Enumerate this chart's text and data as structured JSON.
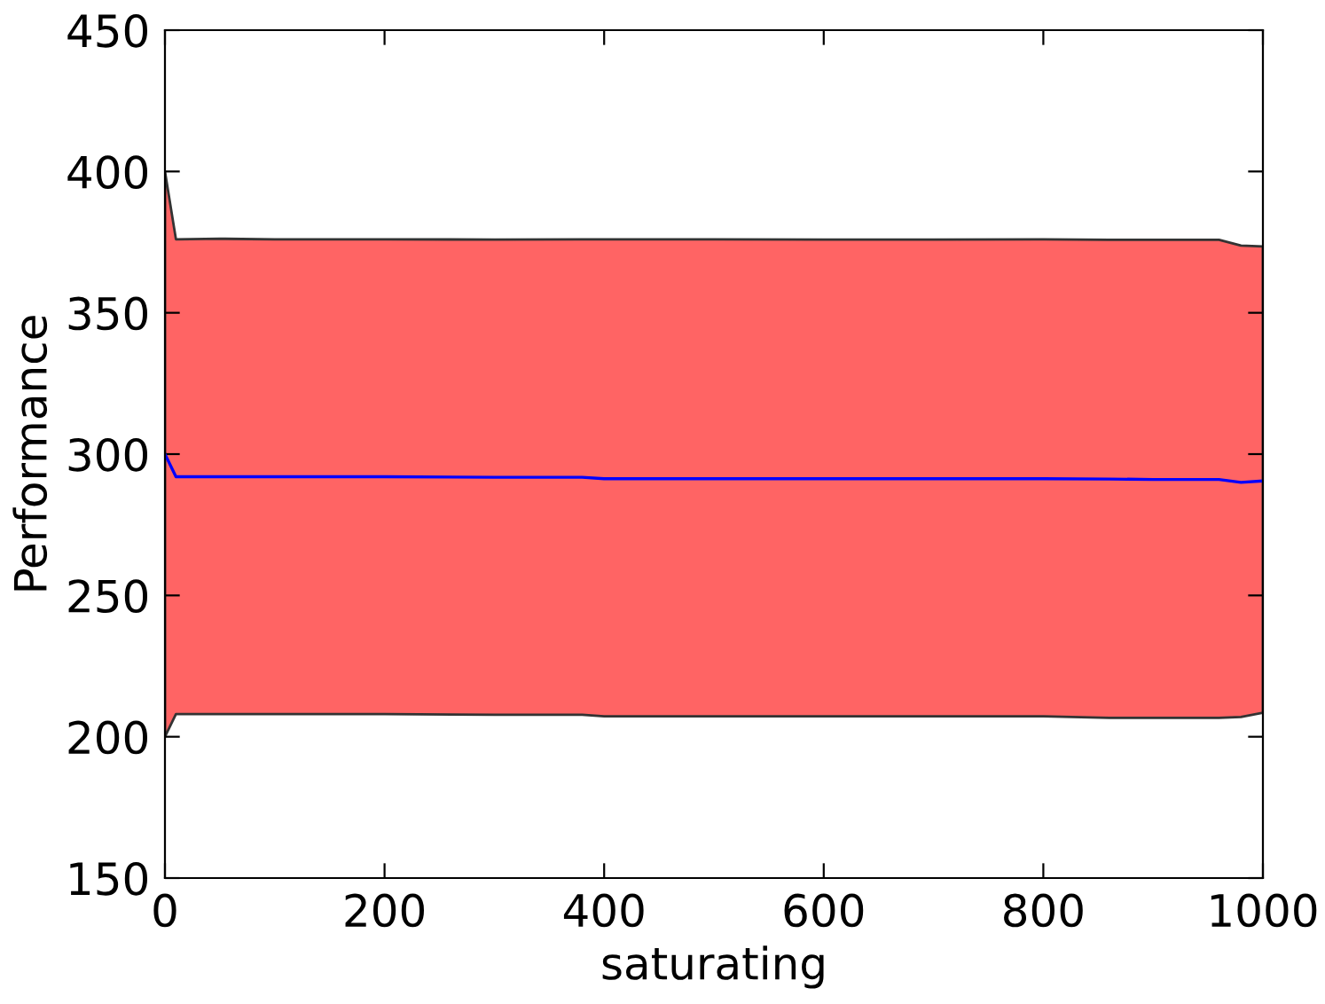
{
  "chart_data": {
    "type": "line",
    "xlabel": "saturating",
    "ylabel": "Performance",
    "x": [
      0,
      10,
      50,
      100,
      200,
      300,
      380,
      400,
      500,
      600,
      700,
      800,
      860,
      900,
      960,
      980,
      1000
    ],
    "series": [
      {
        "color": "#0000ff",
        "values": [
          300,
          292,
          292,
          292,
          292,
          291.8,
          291.8,
          291.3,
          291.3,
          291.3,
          291.3,
          291.3,
          291.2,
          291,
          291,
          290,
          290.5
        ],
        "lower": [
          200,
          208,
          208,
          208,
          208,
          207.8,
          207.8,
          207.2,
          207.2,
          207.2,
          207.2,
          207.2,
          206.7,
          206.7,
          206.7,
          207,
          208.5
        ],
        "upper": [
          400,
          376,
          376.2,
          376,
          376,
          375.9,
          376,
          376,
          376,
          375.9,
          375.9,
          376,
          375.8,
          375.8,
          375.8,
          373.8,
          373.5
        ]
      }
    ],
    "xlim": [
      0,
      1000
    ],
    "xticks": [
      0,
      200,
      400,
      600,
      800,
      1000
    ],
    "ylim": [
      150,
      450
    ],
    "yticks": [
      150,
      200,
      250,
      300,
      350,
      400,
      450
    ],
    "grid": false,
    "legend": false,
    "marker": "none",
    "line_style": "solid"
  }
}
